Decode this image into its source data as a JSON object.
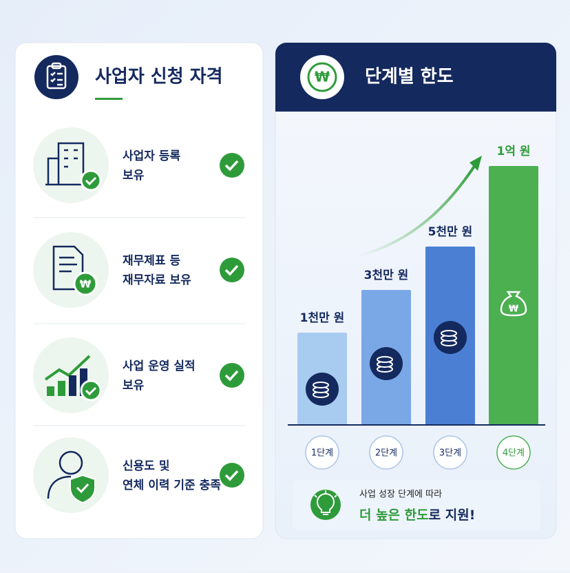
{
  "left": {
    "title": "사업자 신청 자격",
    "items": [
      {
        "lines": [
          "사업자 등록",
          "보유"
        ]
      },
      {
        "lines": [
          "재무제표 등",
          "재무자료 보유"
        ]
      },
      {
        "lines": [
          "사업 운영 실적",
          "보유"
        ]
      },
      {
        "lines": [
          "신용도 및",
          "연체 이력 기준 충족"
        ]
      }
    ]
  },
  "right": {
    "title": "단계별 한도",
    "currency_symbol": "₩",
    "steps": [
      {
        "amount": "1천만 원",
        "label": "1단계"
      },
      {
        "amount": "3천만 원",
        "label": "2단계"
      },
      {
        "amount": "5천만 원",
        "label": "3단계"
      },
      {
        "amount": "1억 원",
        "label": "4단계"
      }
    ],
    "footer": {
      "line1": "사업 성장 단계에 따라",
      "highlight": "더 높은 한도",
      "rest": "로 지원!"
    }
  }
}
